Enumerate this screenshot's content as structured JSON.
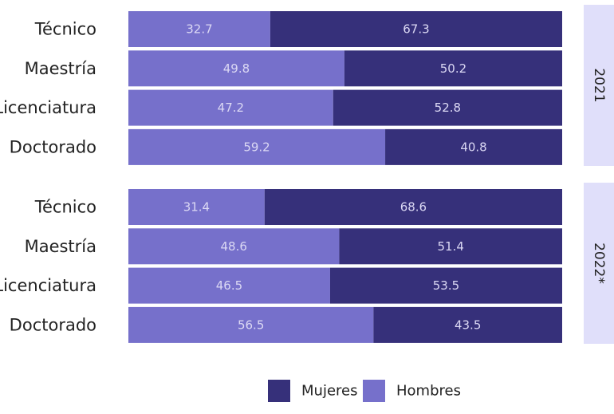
{
  "chart_data": {
    "type": "bar",
    "orientation": "horizontal",
    "stacked": true,
    "normalized_percent": true,
    "legend_position": "bottom",
    "grid": false,
    "colors": {
      "Mujeres": "#36307a",
      "Hombres": "#7670cb",
      "facet_bg": "#e0dffa"
    },
    "legend": [
      "Mujeres",
      "Hombres"
    ],
    "facets": [
      {
        "label": "2021",
        "categories": [
          "Técnico",
          "Maestría",
          "Licenciatura",
          "Doctorado"
        ],
        "series": [
          {
            "name": "Hombres",
            "values": [
              32.7,
              49.8,
              47.2,
              59.2
            ]
          },
          {
            "name": "Mujeres",
            "values": [
              67.3,
              50.2,
              52.8,
              40.8
            ]
          }
        ]
      },
      {
        "label": "2022*",
        "categories": [
          "Técnico",
          "Maestría",
          "Licenciatura",
          "Doctorado"
        ],
        "series": [
          {
            "name": "Hombres",
            "values": [
              31.4,
              48.6,
              46.5,
              56.5
            ]
          },
          {
            "name": "Mujeres",
            "values": [
              68.6,
              51.4,
              53.5,
              43.5
            ]
          }
        ]
      }
    ]
  }
}
